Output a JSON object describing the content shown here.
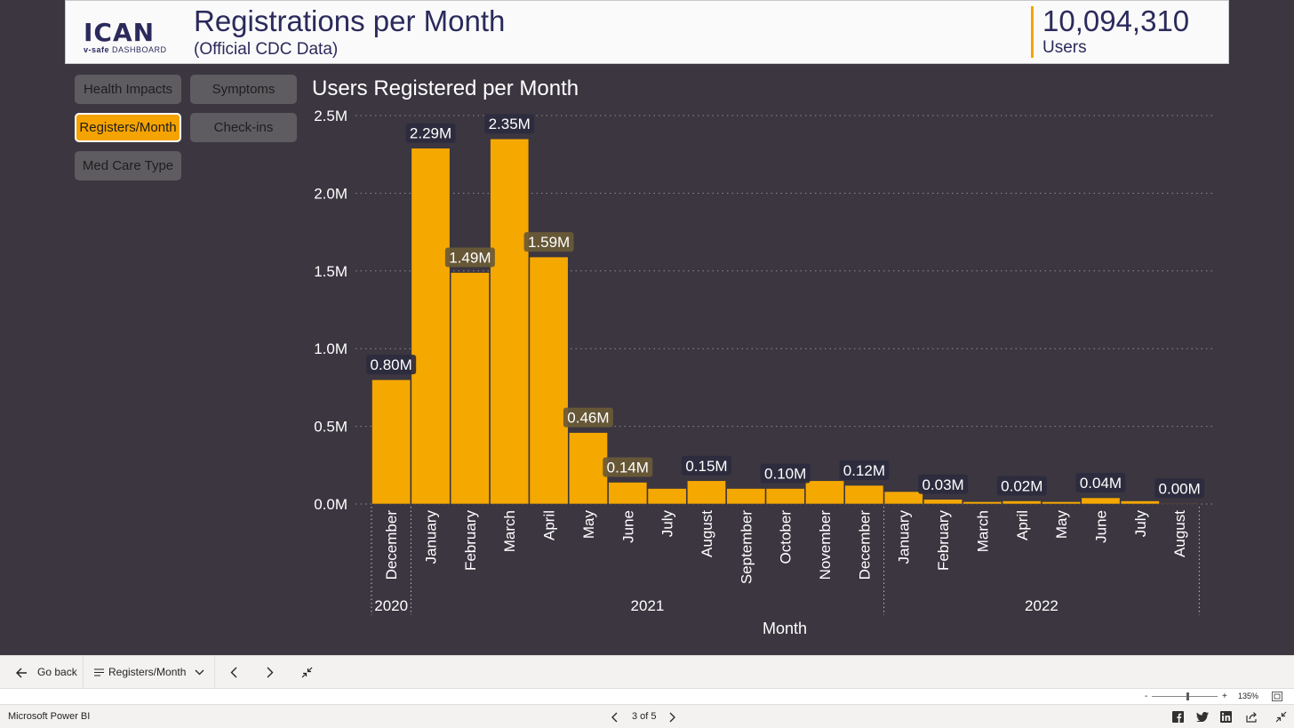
{
  "header": {
    "logo_main": "ICAN",
    "logo_sub_bold": "v-safe",
    "logo_sub": "DASHBOARD",
    "title": "Registrations per Month",
    "subtitle": "(Official CDC Data)",
    "kpi_value": "10,094,310",
    "kpi_label": "Users"
  },
  "nav": {
    "health_impacts": "Health Impacts",
    "symptoms": "Symptoms",
    "registers_month": "Registers/Month",
    "check_ins": "Check-ins",
    "med_care_type": "Med Care Type"
  },
  "colors": {
    "bar": "#f5a800",
    "background": "#3b3640",
    "accent": "#f5a300",
    "brand": "#2b2a5c"
  },
  "chart_data": {
    "type": "bar",
    "title": "Users Registered per Month",
    "xlabel": "Month",
    "ylabel": "",
    "ylim": [
      0,
      2500000
    ],
    "yticks": [
      "0.0M",
      "0.5M",
      "1.0M",
      "1.5M",
      "2.0M",
      "2.5M"
    ],
    "grid": true,
    "categories": [
      "December",
      "January",
      "February",
      "March",
      "April",
      "May",
      "June",
      "July",
      "August",
      "September",
      "October",
      "November",
      "December",
      "January",
      "February",
      "March",
      "April",
      "May",
      "June",
      "July",
      "August"
    ],
    "values": [
      800000,
      2290000,
      1490000,
      2350000,
      1590000,
      460000,
      140000,
      100000,
      150000,
      100000,
      100000,
      150000,
      120000,
      80000,
      30000,
      15000,
      20000,
      15000,
      40000,
      20000,
      4000
    ],
    "data_labels": [
      "0.80M",
      "2.29M",
      "1.49M",
      "2.35M",
      "1.59M",
      "0.46M",
      "0.14M",
      "",
      "0.15M",
      "",
      "0.10M",
      "",
      "0.12M",
      "",
      "0.03M",
      "",
      "0.02M",
      "",
      "0.04M",
      "",
      "0.00M"
    ],
    "year_groups": [
      {
        "label": "2020",
        "start": 0,
        "end": 0
      },
      {
        "label": "2021",
        "start": 1,
        "end": 12
      },
      {
        "label": "2022",
        "start": 13,
        "end": 20
      }
    ]
  },
  "bottom_bar": {
    "go_back": "Go back",
    "page_name": "Registers/Month"
  },
  "zoom": {
    "level": "135%"
  },
  "status_bar": {
    "app_name": "Microsoft Power BI",
    "page_indicator": "3 of 5"
  }
}
